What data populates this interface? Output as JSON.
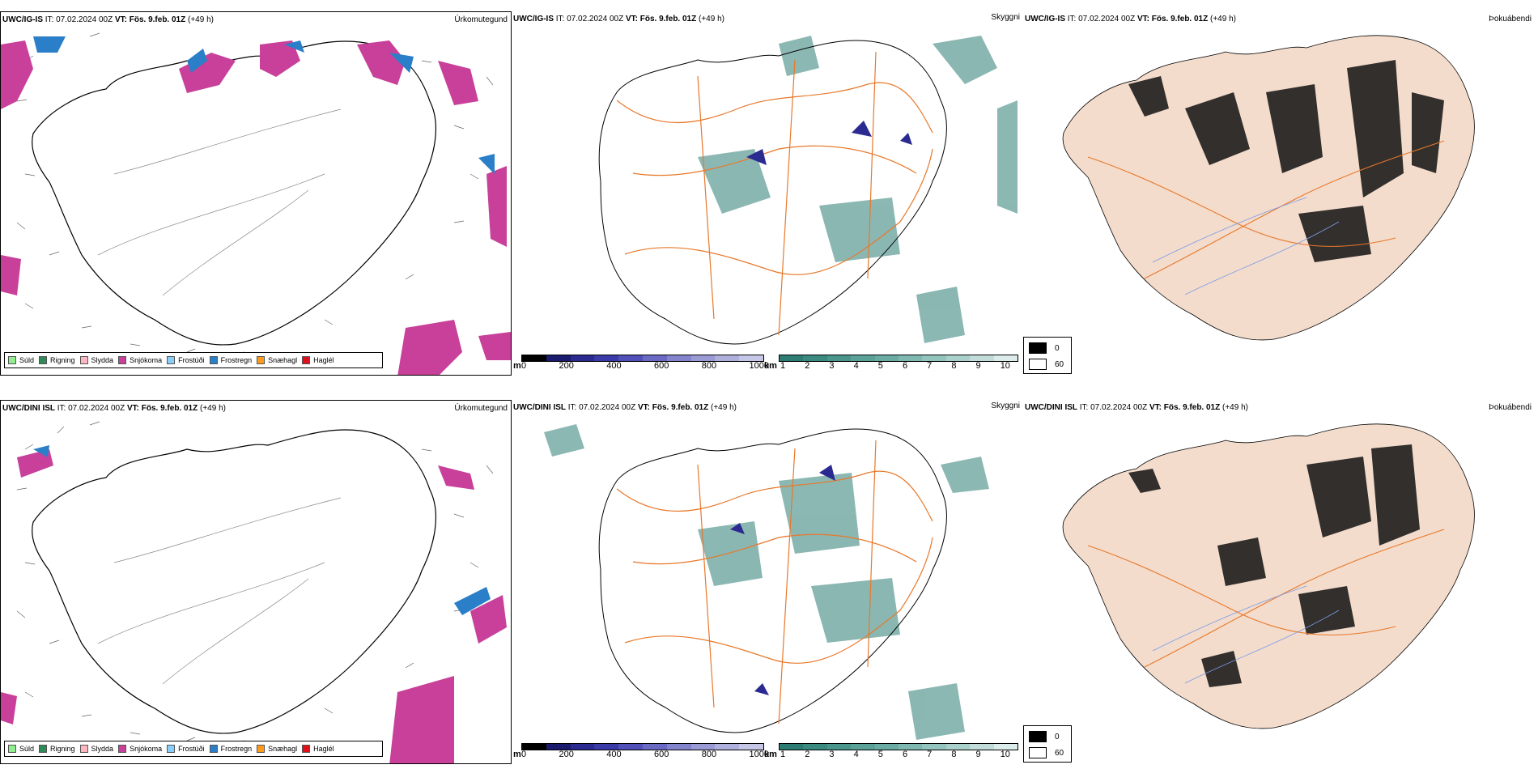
{
  "rows": [
    {
      "precip": {
        "model": "UWC/IG-IS",
        "it": "IT: 07.02.2024 00Z",
        "vt_label": "VT:",
        "vt": "Fös. 9.feb. 01Z",
        "lead": "(+49 h)",
        "title": "Úrkomutegund"
      },
      "cloud": {
        "model": "UWC/IG-IS",
        "it": "IT: 07.02.2024 00Z",
        "vt_label": "VT:",
        "vt": "Fös. 9.feb. 01Z",
        "lead": "(+49 h)",
        "title": "Skyggni"
      },
      "fog": {
        "model": "UWC/IG-IS",
        "it": "IT: 07.02.2024 00Z",
        "vt_label": "VT:",
        "vt": "Fös. 9.feb. 01Z",
        "lead": "(+49 h)",
        "title": "Þokuábendi"
      }
    },
    {
      "precip": {
        "model": "UWC/DINI ISL",
        "it": "IT: 07.02.2024 00Z",
        "vt_label": "VT:",
        "vt": "Fös. 9.feb. 01Z",
        "lead": "(+49 h)",
        "title": "Úrkomutegund"
      },
      "cloud": {
        "model": "UWC/DINI ISL",
        "it": "IT: 07.02.2024 00Z",
        "vt_label": "VT:",
        "vt": "Fös. 9.feb. 01Z",
        "lead": "(+49 h)",
        "title": "Skyggni"
      },
      "fog": {
        "model": "UWC/DINI ISL",
        "it": "IT: 07.02.2024 00Z",
        "vt_label": "VT:",
        "vt": "Fös. 9.feb. 01Z",
        "lead": "(+49 h)",
        "title": "Þokuábendi"
      }
    }
  ],
  "precip_legend": [
    {
      "label": "Súld",
      "color": "#90ee90"
    },
    {
      "label": "Rigning",
      "color": "#2e8b57"
    },
    {
      "label": "Slydda",
      "color": "#ffb6c1"
    },
    {
      "label": "Snjókoma",
      "color": "#c8409a"
    },
    {
      "label": "Frostúði",
      "color": "#87cefa"
    },
    {
      "label": "Frostregn",
      "color": "#2a7fc8"
    },
    {
      "label": "Snæhagl",
      "color": "#ff9a1a"
    },
    {
      "label": "Haglél",
      "color": "#e0101a"
    }
  ],
  "height_bar": {
    "unit": "m",
    "ticks": [
      "0",
      "200",
      "400",
      "600",
      "800",
      "1000"
    ],
    "colors": [
      "#000000",
      "#1a1a6e",
      "#2a2a90",
      "#3a3aa8",
      "#5050b8",
      "#6a6ac4",
      "#8484cc",
      "#9a9ad4",
      "#b0b0dc",
      "#c6c6e6"
    ]
  },
  "vis_bar": {
    "unit": "km",
    "ticks": [
      "1",
      "2",
      "3",
      "4",
      "5",
      "6",
      "7",
      "8",
      "9",
      "10"
    ],
    "colors": [
      "#2e7d74",
      "#3a8a80",
      "#4a968c",
      "#5aa198",
      "#6aaca4",
      "#7eb8b0",
      "#94c4be",
      "#aad0cb",
      "#c2ddd9",
      "#dcecea"
    ]
  },
  "fog_legend": [
    {
      "label": "0",
      "color": "#000000"
    },
    {
      "label": "60",
      "color": "#ffffff"
    }
  ],
  "colors": {
    "land": "#f3dccc",
    "road": "#e8782a",
    "coast": "#000000",
    "fog_dark": "#111111",
    "snow": "#c8409a",
    "frost": "#2a7fc8",
    "vis": "#2e7d74"
  }
}
